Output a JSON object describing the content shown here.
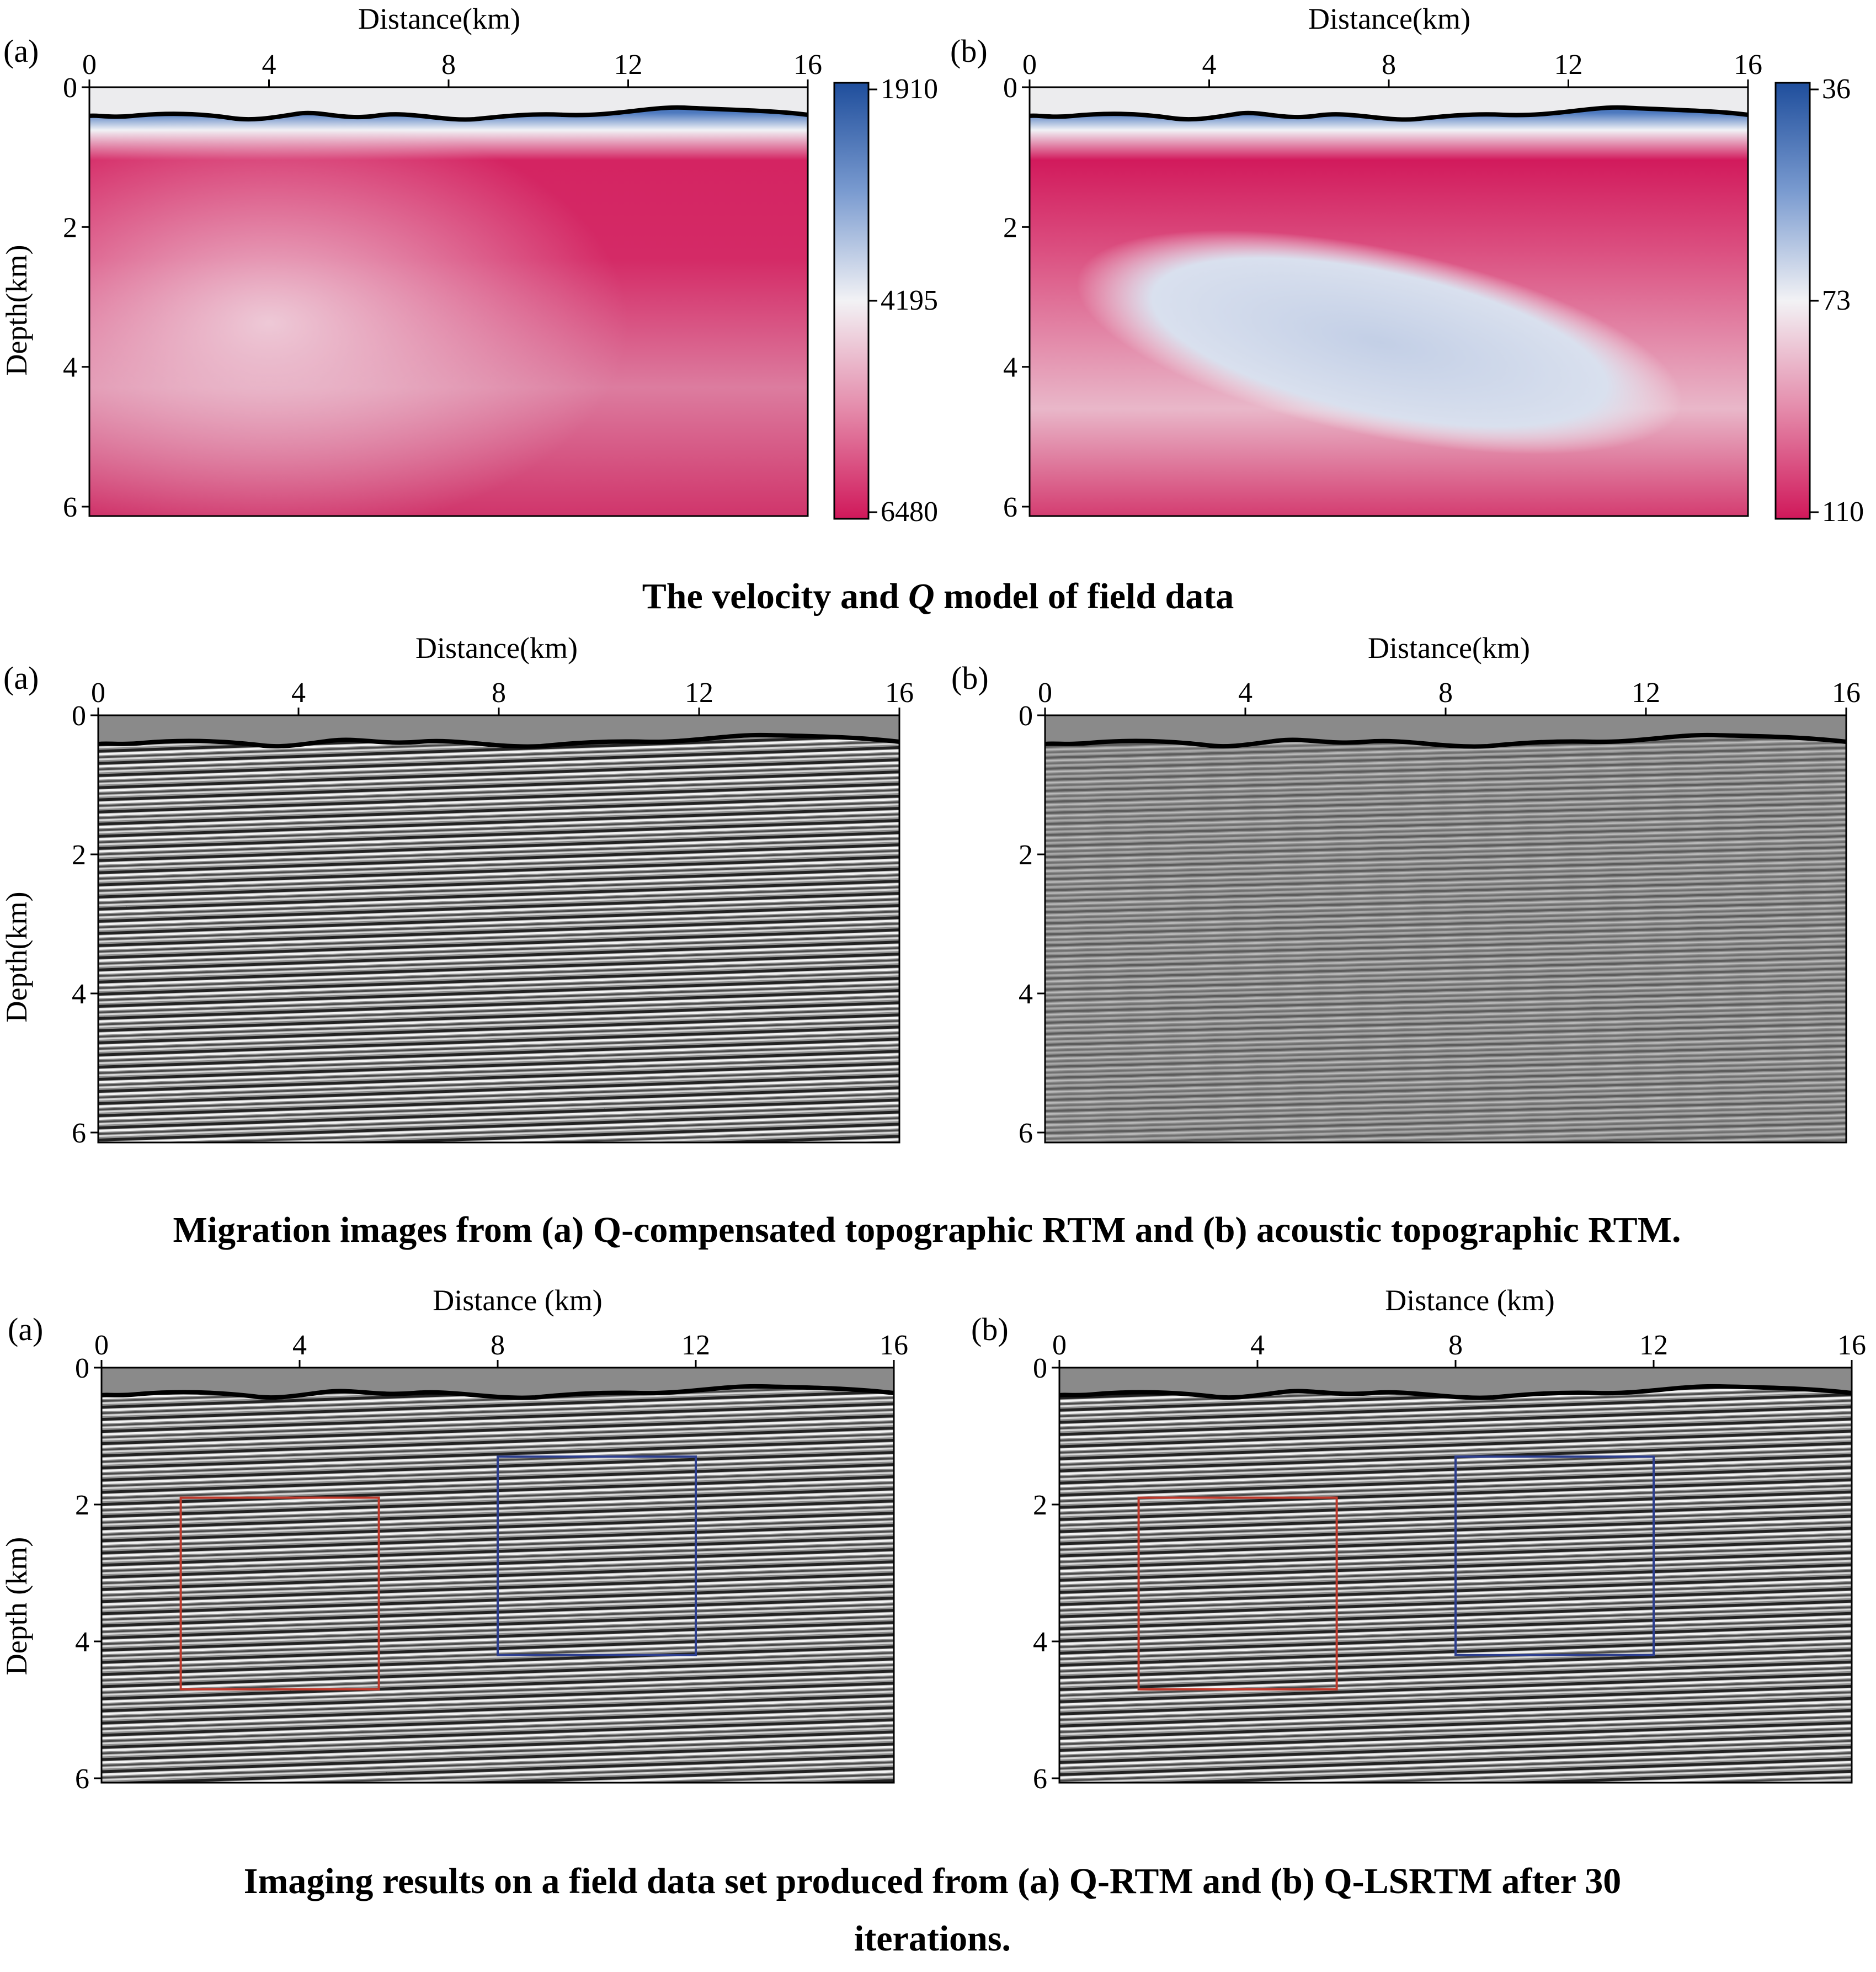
{
  "sections": [
    {
      "caption": "The velocity and Q model of field data",
      "caption_parts": [
        "The velocity and ",
        "Q",
        " model of field data"
      ],
      "panels": [
        {
          "label": "(a)",
          "xlabel": "Distance(km)",
          "ylabel": "Depth(km)",
          "colorbar_ticks": [
            "1910",
            "4195",
            "6480"
          ]
        },
        {
          "label": "(b)",
          "xlabel": "Distance(km)",
          "ylabel": "",
          "colorbar_ticks": [
            "36",
            "73",
            "110"
          ]
        }
      ]
    },
    {
      "caption": "Migration images from (a) Q-compensated topographic RTM and (b) acoustic topographic RTM.",
      "panels": [
        {
          "label": "(a)",
          "xlabel": "Distance(km)",
          "ylabel": "Depth(km)"
        },
        {
          "label": "(b)",
          "xlabel": "Distance(km)",
          "ylabel": ""
        }
      ]
    },
    {
      "caption_lines": [
        "Imaging results on a field data set produced from (a) Q-RTM and (b) Q-LSRTM after 30",
        "iterations."
      ],
      "panels": [
        {
          "label": "(a)",
          "xlabel": "Distance (km)",
          "ylabel": "Depth (km)"
        },
        {
          "label": "(b)",
          "xlabel": "Distance (km)",
          "ylabel": ""
        }
      ]
    }
  ],
  "axes": {
    "x_ticks": [
      "0",
      "4",
      "8",
      "12",
      "16"
    ],
    "y_ticks": [
      "0",
      "2",
      "4",
      "6"
    ],
    "x_range": [
      0,
      16
    ],
    "y_range": [
      0,
      6
    ]
  },
  "colors": {
    "velocity_low": "#1f4e9c",
    "velocity_mid": "#f2f2f5",
    "velocity_high": "#d0185a",
    "air": "#ececee",
    "seismic_background": "#8a8a8a",
    "box_red": "#c0392b",
    "box_blue": "#2c3e8f"
  },
  "annotations": {
    "red_box_km": {
      "x": [
        1.6,
        5.6
      ],
      "z": [
        1.9,
        4.7
      ]
    },
    "blue_box_km": {
      "x": [
        8,
        12
      ],
      "z": [
        1.3,
        4.2
      ]
    }
  }
}
